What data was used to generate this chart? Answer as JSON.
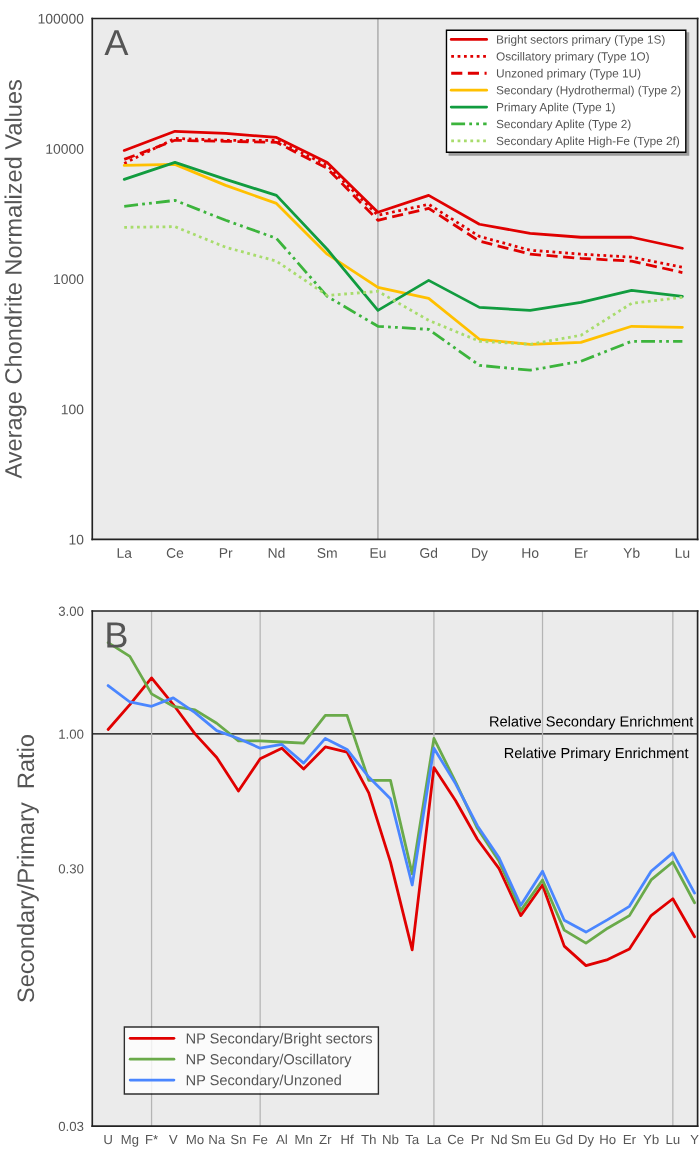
{
  "chart_data": [
    {
      "type": "line",
      "title": "A",
      "ylabel": "Average Chondrite Normalized Values",
      "log": true,
      "legend": "top right",
      "grid": false,
      "categories": [
        "La",
        "Ce",
        "Pr",
        "Nd",
        "Sm",
        "Eu",
        "Gd",
        "Dy",
        "Ho",
        "Er",
        "Yb",
        "Lu"
      ],
      "ylim": [
        10,
        100000
      ],
      "yticks": [
        10,
        100,
        1000,
        10000,
        100000
      ],
      "ref_lines": [
        {
          "axis": "x",
          "value": "Eu",
          "color": "#a0a0a0"
        }
      ],
      "series": [
        {
          "name": "Bright sectors primary (Type 1S)",
          "color": "#e00000",
          "line_style": "solid",
          "values": [
            9700,
            13600,
            13100,
            12200,
            7850,
            3250,
            4380,
            2630,
            2240,
            2090,
            2090,
            1720
          ]
        },
        {
          "name": "Oscillatory primary (Type 1O)",
          "color": "#e00000",
          "line_style": "dotted",
          "values": [
            7710,
            12000,
            11600,
            11600,
            7440,
            3080,
            3740,
            2120,
            1660,
            1550,
            1470,
            1230
          ]
        },
        {
          "name": "Unzoned primary (Type 1U)",
          "color": "#e00000",
          "line_style": "dashed",
          "values": [
            8280,
            11600,
            11400,
            11200,
            7060,
            2820,
            3480,
            1950,
            1550,
            1440,
            1370,
            1120
          ]
        },
        {
          "name": "Secondary (Hydrothermal) (Type 2)",
          "color": "#ffc000",
          "line_style": "solid",
          "values": [
            7440,
            7580,
            5230,
            3800,
            1550,
            862,
            710,
            344,
            315,
            326,
            433,
            425
          ]
        },
        {
          "name": "Primary Aplite (Type 1)",
          "color": "#119c3f",
          "line_style": "solid",
          "values": [
            5810,
            7850,
            5810,
            4380,
            1690,
            574,
            975,
            605,
            574,
            661,
            818,
            735
          ]
        },
        {
          "name": "Secondary Aplite (Type 2)",
          "color": "#3cb43c",
          "line_style": "dashdot",
          "values": [
            3610,
            4010,
            2820,
            2050,
            735,
            433,
            410,
            217,
            199,
            233,
            332,
            332
          ]
        },
        {
          "name": "Secondary Aplite High-Fe (Type 2f)",
          "color": "#a8dc6c",
          "line_style": "dotted",
          "values": [
            2490,
            2520,
            1750,
            1370,
            748,
            803,
            481,
            332,
            315,
            369,
            650,
            723
          ]
        }
      ]
    },
    {
      "type": "line",
      "title": "B",
      "ylabel": "Secondary/Primary  Ratio",
      "log": true,
      "legend": "bottom left",
      "grid": false,
      "categories": [
        "U",
        "Mg",
        "F*",
        "V",
        "Mo",
        "Na",
        "Sn",
        "Fe",
        "Al",
        "Mn",
        "Zr",
        "Hf",
        "Th",
        "Nb",
        "Ta",
        "La",
        "Ce",
        "Pr",
        "Nd",
        "Sm",
        "Eu",
        "Gd",
        "Dy",
        "Ho",
        "Er",
        "Yb",
        "Lu",
        "Y"
      ],
      "ylim": [
        0.03,
        3
      ],
      "yticks": [
        {
          "value": 0.03,
          "label": "0.03"
        },
        {
          "value": 0.3,
          "label": "0.30"
        },
        {
          "value": 1,
          "label": "1.00"
        },
        {
          "value": 3,
          "label": "3.00"
        }
      ],
      "ref_lines": [
        {
          "axis": "y",
          "value": 1,
          "label": "Relative Secondary Enrichment",
          "color": "#000000"
        },
        {
          "axis": "x",
          "value": "F*",
          "color": "#b4b4b4"
        },
        {
          "axis": "x",
          "value": "Fe",
          "color": "#b4b4b4"
        },
        {
          "axis": "x",
          "value": "La",
          "color": "#b4b4b4"
        },
        {
          "axis": "x",
          "value": "Eu",
          "color": "#b4b4b4"
        },
        {
          "axis": "x",
          "value": "Lu",
          "color": "#b4b4b4"
        }
      ],
      "annotations": [
        "Relative Primary Enrichment"
      ],
      "series": [
        {
          "name": "NP Secondary/Bright sectors",
          "color": "#e00000",
          "values": [
            1.04,
            1.3,
            1.65,
            1.3,
            1.0,
            0.81,
            0.6,
            0.8,
            0.88,
            0.73,
            0.89,
            0.85,
            0.59,
            0.318,
            0.145,
            0.74,
            0.55,
            0.39,
            0.3,
            0.197,
            0.259,
            0.15,
            0.126,
            0.133,
            0.146,
            0.197,
            0.229,
            0.163
          ]
        },
        {
          "name": "NP Secondary/Oscillatory",
          "color": "#6aaa4a",
          "values": [
            2.26,
            2.0,
            1.43,
            1.28,
            1.24,
            1.1,
            0.94,
            0.94,
            0.93,
            0.92,
            1.18,
            1.18,
            0.66,
            0.66,
            0.286,
            0.96,
            0.65,
            0.43,
            0.32,
            0.206,
            0.271,
            0.173,
            0.154,
            0.176,
            0.197,
            0.271,
            0.318,
            0.221
          ]
        },
        {
          "name": "NP Secondary/Unzoned",
          "color": "#4a86ff",
          "values": [
            1.54,
            1.33,
            1.28,
            1.38,
            1.21,
            1.03,
            0.96,
            0.88,
            0.91,
            0.77,
            0.96,
            0.87,
            0.68,
            0.56,
            0.259,
            0.88,
            0.64,
            0.44,
            0.33,
            0.216,
            0.293,
            0.189,
            0.17,
            0.19,
            0.214,
            0.293,
            0.345,
            0.241
          ]
        }
      ]
    }
  ]
}
